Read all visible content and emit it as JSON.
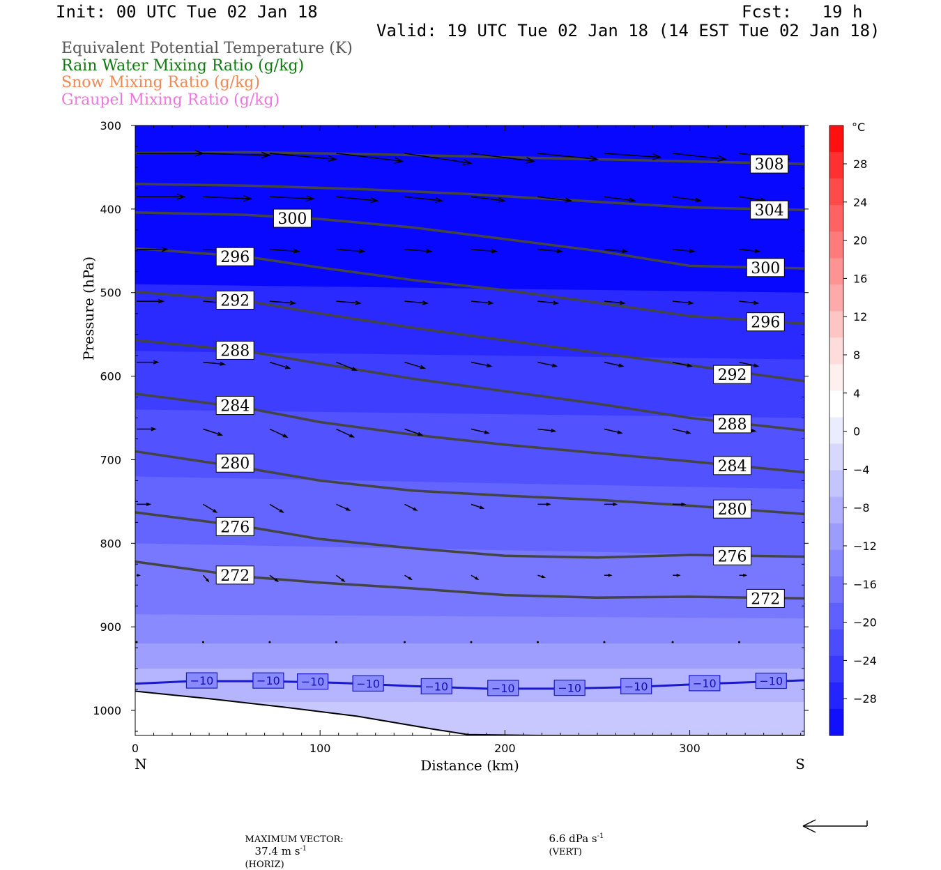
{
  "header": {
    "init": "Init: 00 UTC Tue 02 Jan 18",
    "fcst": "Fcst:   19 h",
    "valid": "Valid: 19 UTC Tue 02 Jan 18 (14 EST Tue 02 Jan 18)",
    "fields": [
      {
        "text": "Equivalent Potential Temperature (K)",
        "color": "#555555"
      },
      {
        "text": "Rain Water Mixing Ratio (g/kg)",
        "color": "#117711"
      },
      {
        "text": "Snow Mixing Ratio (g/kg)",
        "color": "#ee8855"
      },
      {
        "text": "Graupel Mixing Ratio (g/kg)",
        "color": "#ee77dd"
      }
    ]
  },
  "chart_data": {
    "type": "cross-section",
    "xlabel": "Distance (km)",
    "ylabel": "Pressure (hPa)",
    "xlim": [
      0,
      362
    ],
    "ylim": [
      300,
      1030
    ],
    "x_ticks": [
      0,
      100,
      200,
      300
    ],
    "y_ticks": [
      300,
      400,
      500,
      600,
      700,
      800,
      900,
      1000
    ],
    "x_end_labels": {
      "left": "N",
      "right": "S"
    },
    "colorbar": {
      "unit": "°C",
      "tick_labels": [
        "28",
        "24",
        "20",
        "16",
        "12",
        "8",
        "4",
        "0",
        "−4",
        "−8",
        "−12",
        "−16",
        "−20",
        "−24",
        "−28"
      ],
      "colors": [
        "#ff1010",
        "#ff3030",
        "#ff4a4a",
        "#ff6262",
        "#ff7a7a",
        "#ff9292",
        "#ffaaaa",
        "#ffc4c4",
        "#ffdcdc",
        "#fff0f0",
        "#ffffff",
        "#ececff",
        "#d8d8ff",
        "#c4c4ff",
        "#b0b0ff",
        "#9c9cff",
        "#8888ff",
        "#7474ff",
        "#6060ff",
        "#4c4cff",
        "#3838ff",
        "#2424ff",
        "#1010ff"
      ]
    },
    "theta_e_contours": [
      {
        "value": 308,
        "x": [
          0,
          60,
          120,
          180,
          240,
          300,
          362
        ],
        "p": [
          333,
          332,
          334,
          337,
          340,
          343,
          346
        ]
      },
      {
        "value": 304,
        "x": [
          0,
          60,
          120,
          180,
          240,
          300,
          362
        ],
        "p": [
          370,
          372,
          376,
          382,
          390,
          398,
          401
        ]
      },
      {
        "value": 300,
        "x": [
          0,
          60,
          100,
          150,
          200,
          250,
          300,
          362
        ],
        "p": [
          404,
          407,
          412,
          422,
          436,
          450,
          468,
          471
        ]
      },
      {
        "value": 296,
        "x": [
          0,
          60,
          100,
          150,
          200,
          250,
          300,
          362
        ],
        "p": [
          447,
          457,
          470,
          485,
          497,
          512,
          528,
          537
        ]
      },
      {
        "value": 292,
        "x": [
          0,
          60,
          100,
          150,
          200,
          250,
          300,
          362
        ],
        "p": [
          499,
          510,
          525,
          542,
          557,
          572,
          587,
          606
        ]
      },
      {
        "value": 288,
        "x": [
          0,
          60,
          100,
          150,
          200,
          250,
          300,
          362
        ],
        "p": [
          557,
          570,
          585,
          603,
          618,
          633,
          650,
          665
        ]
      },
      {
        "value": 284,
        "x": [
          0,
          60,
          100,
          150,
          200,
          250,
          300,
          362
        ],
        "p": [
          621,
          638,
          655,
          670,
          682,
          692,
          702,
          715
        ]
      },
      {
        "value": 280,
        "x": [
          0,
          60,
          100,
          150,
          200,
          250,
          300,
          362
        ],
        "p": [
          690,
          710,
          725,
          737,
          743,
          748,
          755,
          765
        ]
      },
      {
        "value": 276,
        "x": [
          0,
          60,
          100,
          150,
          200,
          250,
          300,
          362
        ],
        "p": [
          763,
          780,
          795,
          806,
          815,
          817,
          814,
          816
        ]
      },
      {
        "value": 272,
        "x": [
          0,
          60,
          100,
          150,
          200,
          250,
          300,
          362
        ],
        "p": [
          822,
          840,
          847,
          854,
          862,
          865,
          864,
          866
        ]
      }
    ],
    "theta_e_labels": [
      {
        "text": "308",
        "x": 343,
        "p": 346
      },
      {
        "text": "304",
        "x": 343,
        "p": 401
      },
      {
        "text": "300",
        "x": 341,
        "p": 470
      },
      {
        "text": "296",
        "x": 341,
        "p": 535
      },
      {
        "text": "292",
        "x": 323,
        "p": 598
      },
      {
        "text": "288",
        "x": 323,
        "p": 657
      },
      {
        "text": "284",
        "x": 323,
        "p": 707
      },
      {
        "text": "280",
        "x": 323,
        "p": 759
      },
      {
        "text": "276",
        "x": 323,
        "p": 815
      },
      {
        "text": "272",
        "x": 341,
        "p": 866
      },
      {
        "text": "300",
        "x": 85,
        "p": 411
      },
      {
        "text": "296",
        "x": 54,
        "p": 457
      },
      {
        "text": "292",
        "x": 54,
        "p": 509
      },
      {
        "text": "288",
        "x": 54,
        "p": 569
      },
      {
        "text": "284",
        "x": 54,
        "p": 635
      },
      {
        "text": "280",
        "x": 54,
        "p": 704
      },
      {
        "text": "276",
        "x": 54,
        "p": 780
      },
      {
        "text": "272",
        "x": 54,
        "p": 838
      }
    ],
    "isotherm_minus10": {
      "value": "-10",
      "color": "#1818cc",
      "x": [
        0,
        30,
        70,
        110,
        150,
        190,
        230,
        270,
        310,
        362
      ],
      "p": [
        968,
        965,
        965,
        967,
        971,
        974,
        974,
        972,
        968,
        964
      ],
      "labels": [
        {
          "text": "−10",
          "x": 36
        },
        {
          "text": "−10",
          "x": 72
        },
        {
          "text": "−10",
          "x": 96
        },
        {
          "text": "−10",
          "x": 126
        },
        {
          "text": "−10",
          "x": 163
        },
        {
          "text": "−10",
          "x": 199
        },
        {
          "text": "−10",
          "x": 235
        },
        {
          "text": "−10",
          "x": 271
        },
        {
          "text": "−10",
          "x": 308
        },
        {
          "text": "−10",
          "x": 344
        }
      ]
    },
    "temperature_bands_C": [
      {
        "x": [
          0,
          362
        ],
        "p_bottom": [
          490,
          500
        ],
        "color": "#1414ff"
      },
      {
        "x": [
          0,
          362
        ],
        "p_bottom": [
          570,
          580
        ],
        "color": "#2a2aff"
      },
      {
        "x": [
          0,
          362
        ],
        "p_bottom": [
          640,
          650
        ],
        "color": "#3e3eff"
      },
      {
        "x": [
          0,
          362
        ],
        "p_bottom": [
          720,
          735
        ],
        "color": "#5252ff"
      },
      {
        "x": [
          0,
          362
        ],
        "p_bottom": [
          800,
          815
        ],
        "color": "#6464ff"
      },
      {
        "x": [
          0,
          362
        ],
        "p_bottom": [
          885,
          890
        ],
        "color": "#7878ff"
      },
      {
        "x": [
          0,
          362
        ],
        "p_bottom": [
          920,
          920
        ],
        "color": "#8a8aff"
      },
      {
        "x": [
          0,
          362
        ],
        "p_bottom": [
          950,
          950
        ],
        "color": "#9e9eff"
      },
      {
        "x": [
          0,
          362
        ],
        "p_bottom": [
          990,
          990
        ],
        "color": "#b4b4ff"
      },
      {
        "x": [
          0,
          362
        ],
        "p_bottom": [
          1030,
          1030
        ],
        "color": "#c8c8ff"
      }
    ],
    "terrain": {
      "x": [
        0,
        40,
        80,
        120,
        160,
        180,
        220,
        362
      ],
      "p": [
        977,
        986,
        996,
        1007,
        1022,
        1029,
        1030,
        1030
      ]
    },
    "wind_vectors": {
      "columns": [
        0,
        36,
        72,
        108,
        145,
        181,
        217,
        253,
        290,
        326,
        362
      ],
      "levels": [
        {
          "p": 335,
          "u": [
            1.0,
            1.0,
            1.0,
            1.0,
            1.0,
            0.95,
            0.9,
            0.85,
            0.8,
            0.75,
            0.7
          ],
          "v": [
            0,
            0.01,
            0.03,
            0.04,
            0.05,
            0.04,
            0.03,
            0.02,
            0.03,
            0.03,
            0.02
          ]
        },
        {
          "p": 387,
          "u": [
            0.72,
            0.72,
            0.66,
            0.62,
            0.56,
            0.5,
            0.5,
            0.46,
            0.42,
            0.4,
            0.36
          ],
          "v": [
            0,
            0.01,
            0.01,
            0.02,
            0.02,
            0.02,
            0.02,
            0.02,
            0.02,
            0.02,
            0.02
          ]
        },
        {
          "p": 450,
          "u": [
            0.46,
            0.44,
            0.44,
            0.42,
            0.4,
            0.38,
            0.36,
            0.34,
            0.32,
            0.3,
            0.28
          ],
          "v": [
            0,
            0,
            0.01,
            0.01,
            0.01,
            0.01,
            0.01,
            0.01,
            0.01,
            0.01,
            0.01
          ]
        },
        {
          "p": 512,
          "u": [
            0.4,
            0.38,
            0.38,
            0.36,
            0.34,
            0.32,
            0.3,
            0.3,
            0.3,
            0.28,
            0.26
          ],
          "v": [
            0,
            0.01,
            0.01,
            0.01,
            0.01,
            0.01,
            0.01,
            0.01,
            0.01,
            0.01,
            0.01
          ]
        },
        {
          "p": 585,
          "u": [
            0.32,
            0.32,
            0.3,
            0.3,
            0.3,
            0.3,
            0.28,
            0.28,
            0.28,
            0.28,
            0.26
          ],
          "v": [
            0,
            0.01,
            0.03,
            0.04,
            0.03,
            0.02,
            0.02,
            0.02,
            0.02,
            0.02,
            0.02
          ]
        },
        {
          "p": 665,
          "u": [
            0.28,
            0.28,
            0.26,
            0.26,
            0.26,
            0.26,
            0.26,
            0.26,
            0.26,
            0.24,
            0.24
          ],
          "v": [
            0,
            0.03,
            0.04,
            0.04,
            0.03,
            0.02,
            0.01,
            0.02,
            0.02,
            0.01,
            0.01
          ]
        },
        {
          "p": 755,
          "u": [
            0.2,
            0.2,
            0.2,
            0.2,
            0.18,
            0.18,
            0.18,
            0.18,
            0.18,
            0.18,
            0.18
          ],
          "v": [
            0,
            0.04,
            0.04,
            0.03,
            0.03,
            0.02,
            0.0,
            0.0,
            0.0,
            0.0,
            0.0
          ]
        },
        {
          "p": 840,
          "u": [
            0.04,
            0.08,
            0.12,
            0.12,
            0.1,
            0.1,
            0.1,
            0.1,
            0.1,
            0.1,
            0.1
          ],
          "v": [
            0,
            0.03,
            0.03,
            0.03,
            0.02,
            0.02,
            0.01,
            0.0,
            0.0,
            0.0,
            0.0
          ]
        },
        {
          "p": 920,
          "u": [
            0.0,
            0.0,
            0.0,
            0.0,
            0.0,
            0.0,
            0.0,
            0.0,
            0.0,
            0.0,
            0.0
          ],
          "v": [
            0,
            0.01,
            0.01,
            0.01,
            0.01,
            0.01,
            0.01,
            0.01,
            0.01,
            0.01,
            0.01
          ]
        }
      ]
    }
  },
  "footer": {
    "max_vector_label": "MAXIMUM VECTOR:",
    "horiz_value": "37.4 m s",
    "horiz_exp": "-1",
    "horiz_unit": "(HORIZ)",
    "vert_value": "6.6 dPa s",
    "vert_exp": "-1",
    "vert_unit": "(VERT)"
  }
}
